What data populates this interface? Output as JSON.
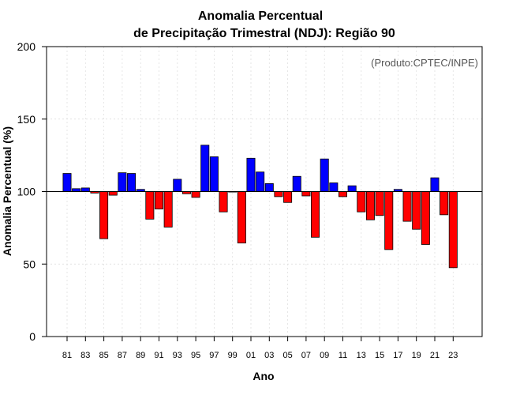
{
  "chart_data": {
    "type": "bar",
    "title_line1": "Anomalia Percentual",
    "title_line2": "de Precipitação Trimestral (NDJ): Região 90",
    "xlabel": "Ano",
    "ylabel": "Anomalia Percentual (%)",
    "credit": "(Produto:CPTEC/INPE)",
    "ylim": [
      0,
      200
    ],
    "yticks": [
      0,
      50,
      100,
      150,
      200
    ],
    "baseline": 100,
    "colors": {
      "above": "#0000ff",
      "below": "#ff0000",
      "outline": "#000000"
    },
    "categories": [
      "81",
      "82",
      "83",
      "84",
      "85",
      "86",
      "87",
      "88",
      "89",
      "90",
      "91",
      "92",
      "93",
      "94",
      "95",
      "96",
      "97",
      "98",
      "99",
      "00",
      "01",
      "02",
      "03",
      "04",
      "05",
      "06",
      "07",
      "08",
      "09",
      "10",
      "11",
      "12",
      "13",
      "14",
      "15",
      "16",
      "17",
      "18",
      "19",
      "20",
      "21",
      "22",
      "23"
    ],
    "xtick_labels": [
      "81",
      "83",
      "85",
      "87",
      "89",
      "91",
      "93",
      "95",
      "97",
      "99",
      "01",
      "03",
      "05",
      "07",
      "09",
      "11",
      "13",
      "15",
      "17",
      "19",
      "21",
      "23"
    ],
    "values": [
      112.5,
      102,
      102.5,
      99,
      67.5,
      97.5,
      113,
      112.5,
      101.5,
      81,
      88,
      75.5,
      108.5,
      98.5,
      96,
      132,
      124,
      86,
      100,
      64.5,
      123,
      113.5,
      105.5,
      96.5,
      92.5,
      110.5,
      97,
      68.5,
      122.5,
      106,
      96.5,
      104,
      86,
      80.5,
      83.5,
      60,
      101.5,
      79.5,
      74,
      63.5,
      109.5,
      84,
      47.5
    ]
  }
}
